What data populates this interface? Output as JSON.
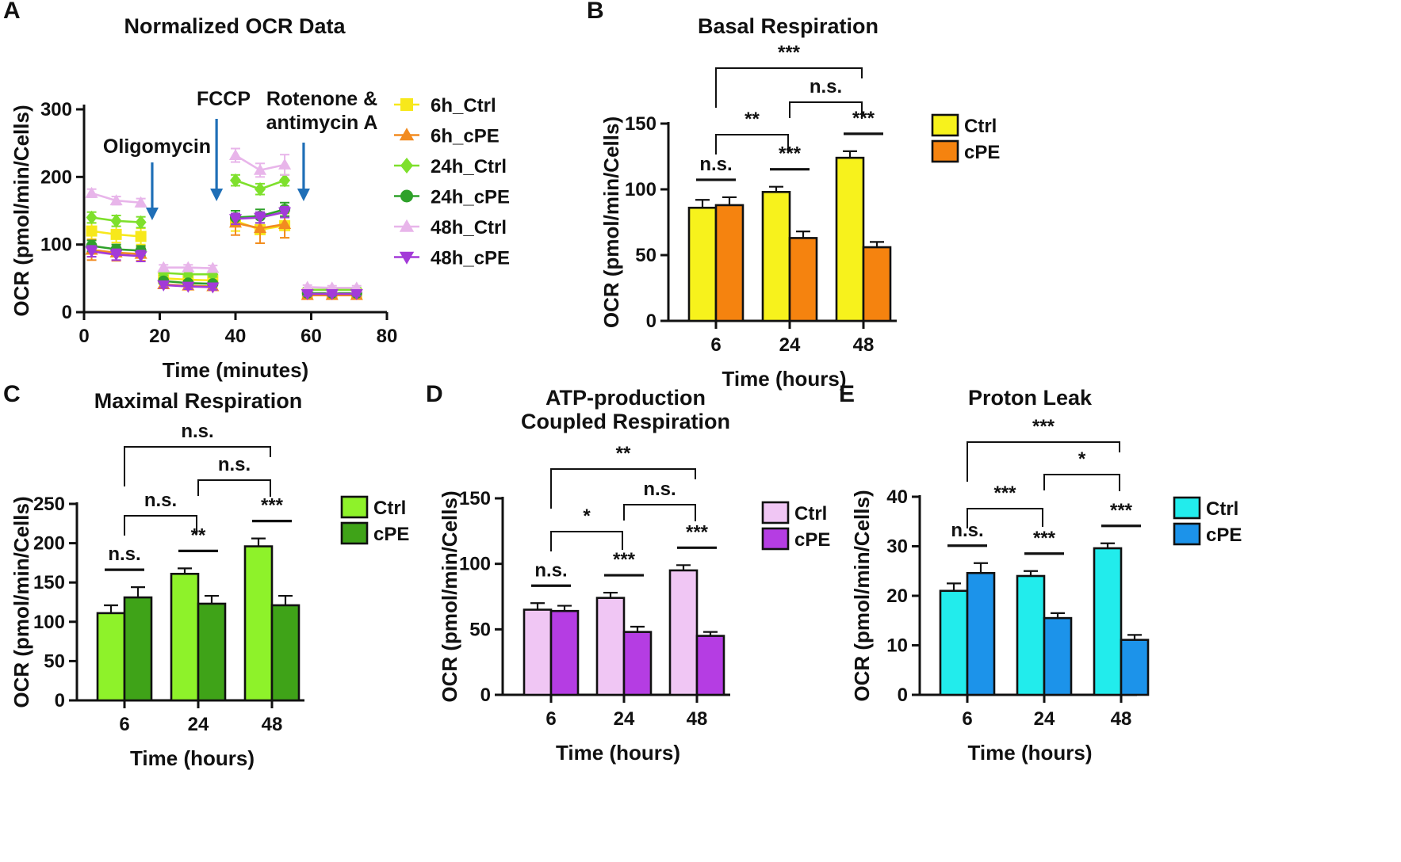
{
  "figure": {
    "panel_labels": [
      "A",
      "B",
      "C",
      "D",
      "E"
    ]
  },
  "chart_data": [
    {
      "panel": "A",
      "type": "line",
      "title": "Normalized OCR Data",
      "xlabel": "Time (minutes)",
      "ylabel": "OCR (pmol/min/Cells)",
      "xlim": [
        0,
        80
      ],
      "ylim": [
        0,
        300
      ],
      "xticks": [
        0,
        20,
        40,
        60,
        80
      ],
      "yticks": [
        0,
        100,
        200,
        300
      ],
      "x": [
        2,
        8.5,
        15,
        21,
        27.5,
        34,
        40,
        46.5,
        53,
        59,
        65.5,
        72
      ],
      "injections": [
        {
          "label": "Oligomycin",
          "x": 18
        },
        {
          "label": "FCCP",
          "x": 35
        },
        {
          "label_lines": [
            "Rotenone &",
            "antimycin A"
          ],
          "x": 58
        }
      ],
      "series": [
        {
          "name": "6h_Ctrl",
          "color": "#f7e81b",
          "marker": "square",
          "values": [
            120,
            115,
            112,
            50,
            48,
            47,
            135,
            122,
            128,
            27,
            27,
            27
          ],
          "errors": [
            12,
            12,
            12,
            5,
            5,
            5,
            15,
            20,
            18,
            3,
            3,
            3
          ]
        },
        {
          "name": "6h_cPE",
          "color": "#f28b20",
          "marker": "triangle-up",
          "values": [
            92,
            88,
            86,
            41,
            39,
            38,
            132,
            124,
            130,
            25,
            25,
            25
          ],
          "errors": [
            15,
            12,
            10,
            5,
            5,
            5,
            18,
            22,
            20,
            5,
            5,
            5
          ]
        },
        {
          "name": "24h_Ctrl",
          "color": "#7ee02c",
          "marker": "diamond",
          "values": [
            140,
            135,
            133,
            58,
            56,
            56,
            195,
            182,
            195,
            33,
            33,
            33
          ],
          "errors": [
            8,
            8,
            8,
            4,
            4,
            4,
            8,
            8,
            8,
            3,
            3,
            3
          ]
        },
        {
          "name": "24h_cPE",
          "color": "#2ea12a",
          "marker": "circle",
          "values": [
            98,
            93,
            91,
            46,
            43,
            42,
            140,
            142,
            152,
            28,
            28,
            28
          ],
          "errors": [
            8,
            7,
            7,
            4,
            4,
            4,
            10,
            10,
            10,
            3,
            3,
            3
          ]
        },
        {
          "name": "48h_Ctrl",
          "color": "#e8b5ea",
          "marker": "triangle-up",
          "values": [
            176,
            165,
            162,
            66,
            66,
            65,
            232,
            210,
            218,
            37,
            36,
            36
          ],
          "errors": [
            6,
            6,
            6,
            4,
            4,
            4,
            10,
            10,
            15,
            3,
            3,
            3
          ]
        },
        {
          "name": "48h_cPE",
          "color": "#a33ad8",
          "marker": "triangle-down",
          "values": [
            90,
            85,
            83,
            40,
            38,
            37,
            138,
            140,
            148,
            27,
            27,
            27
          ],
          "errors": [
            8,
            8,
            8,
            4,
            4,
            4,
            8,
            8,
            8,
            3,
            3,
            3
          ]
        }
      ]
    },
    {
      "panel": "B",
      "type": "bar",
      "title": "Basal Respiration",
      "xlabel": "Time (hours)",
      "ylabel": "OCR (pmol/min/Cells)",
      "ylim": [
        0,
        150
      ],
      "yticks": [
        0,
        50,
        100,
        150
      ],
      "categories": [
        "6",
        "24",
        "48"
      ],
      "series": [
        {
          "name": "Ctrl",
          "color": "#f7f21c",
          "values": [
            86,
            98,
            124
          ],
          "errors": [
            6,
            4,
            5
          ]
        },
        {
          "name": "cPE",
          "color": "#f5830f",
          "values": [
            88,
            63,
            56
          ],
          "errors": [
            6,
            5,
            4
          ]
        }
      ],
      "within_group_significance": [
        "n.s.",
        "***",
        "***"
      ],
      "between_group_significance": [
        {
          "from": "6",
          "to": "24",
          "label": "**"
        },
        {
          "from": "24",
          "to": "48",
          "label": "n.s."
        },
        {
          "from": "6",
          "to": "48",
          "label": "***"
        }
      ]
    },
    {
      "panel": "C",
      "type": "bar",
      "title": "Maximal Respiration",
      "xlabel": "Time (hours)",
      "ylabel": "OCR (pmol/min/Cells)",
      "ylim": [
        0,
        250
      ],
      "yticks": [
        0,
        50,
        100,
        150,
        200,
        250
      ],
      "categories": [
        "6",
        "24",
        "48"
      ],
      "series": [
        {
          "name": "Ctrl",
          "color": "#8ef22a",
          "values": [
            111,
            161,
            196
          ],
          "errors": [
            10,
            7,
            10
          ]
        },
        {
          "name": "cPE",
          "color": "#3fa318",
          "values": [
            131,
            123,
            121
          ],
          "errors": [
            13,
            10,
            12
          ]
        }
      ],
      "within_group_significance": [
        "n.s.",
        "**",
        "***"
      ],
      "between_group_significance": [
        {
          "from": "6",
          "to": "24",
          "label": "n.s."
        },
        {
          "from": "24",
          "to": "48",
          "label": "n.s."
        },
        {
          "from": "6",
          "to": "48",
          "label": "n.s."
        }
      ]
    },
    {
      "panel": "D",
      "type": "bar",
      "title_lines": [
        "ATP-production",
        "Coupled Respiration"
      ],
      "xlabel": "Time (hours)",
      "ylabel": "OCR (pmol/min/Cells)",
      "ylim": [
        0,
        150
      ],
      "yticks": [
        0,
        50,
        100,
        150
      ],
      "categories": [
        "6",
        "24",
        "48"
      ],
      "series": [
        {
          "name": "Ctrl",
          "color": "#f0c6f4",
          "values": [
            65,
            74,
            95
          ],
          "errors": [
            5,
            4,
            4
          ]
        },
        {
          "name": "cPE",
          "color": "#b53de3",
          "values": [
            64,
            48,
            45
          ],
          "errors": [
            4,
            4,
            3
          ]
        }
      ],
      "within_group_significance": [
        "n.s.",
        "***",
        "***"
      ],
      "between_group_significance": [
        {
          "from": "6",
          "to": "24",
          "label": "*"
        },
        {
          "from": "24",
          "to": "48",
          "label": "n.s."
        },
        {
          "from": "6",
          "to": "48",
          "label": "**"
        }
      ]
    },
    {
      "panel": "E",
      "type": "bar",
      "title": "Proton Leak",
      "xlabel": "Time (hours)",
      "ylabel": "OCR (pmol/min/Cells)",
      "ylim": [
        0,
        40
      ],
      "yticks": [
        0,
        10,
        20,
        30,
        40
      ],
      "categories": [
        "6",
        "24",
        "48"
      ],
      "series": [
        {
          "name": "Ctrl",
          "color": "#22ecec",
          "values": [
            21,
            24,
            29.6
          ],
          "errors": [
            1.5,
            1,
            1
          ]
        },
        {
          "name": "cPE",
          "color": "#1c93ea",
          "values": [
            24.6,
            15.5,
            11.1
          ],
          "errors": [
            2,
            1,
            1
          ]
        }
      ],
      "within_group_significance": [
        "n.s.",
        "***",
        "***"
      ],
      "between_group_significance": [
        {
          "from": "6",
          "to": "24",
          "label": "***"
        },
        {
          "from": "24",
          "to": "48",
          "label": "*"
        },
        {
          "from": "6",
          "to": "48",
          "label": "***"
        }
      ]
    }
  ]
}
